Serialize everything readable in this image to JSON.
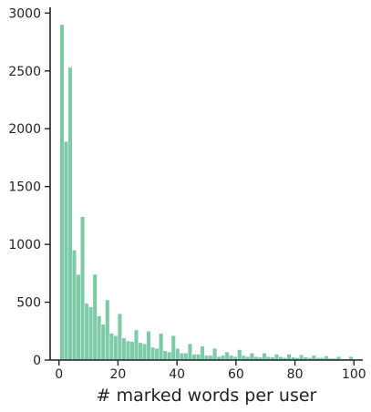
{
  "chart_data": {
    "type": "bar",
    "title": "",
    "xlabel": "# marked words per user",
    "ylabel": "",
    "xlim": [
      -3,
      103
    ],
    "ylim": [
      0,
      3050
    ],
    "xticks": [
      0,
      20,
      40,
      60,
      80,
      100
    ],
    "yticks": [
      0,
      500,
      1000,
      1500,
      2000,
      2500,
      3000
    ],
    "grid": false,
    "legend": "none",
    "bar_color": "#7dcaa8",
    "bin_width": 1.4,
    "series": [
      {
        "x": [
          1.0,
          2.4,
          3.8,
          5.2,
          6.6,
          8.0,
          9.4,
          10.8,
          12.2,
          13.6,
          15.0,
          16.4,
          17.8,
          19.2,
          20.6,
          22.0,
          23.4,
          24.8,
          26.2,
          27.6,
          29.0,
          30.4,
          31.8,
          33.2,
          34.6,
          36.0,
          37.4,
          38.8,
          40.2,
          41.6,
          43.0,
          44.4,
          45.8,
          47.2,
          48.6,
          50.0,
          51.4,
          52.8,
          54.2,
          55.6,
          57.0,
          58.4,
          59.8,
          61.2,
          62.6,
          64.0,
          65.4,
          66.8,
          68.2,
          69.6,
          71.0,
          72.4,
          73.8,
          75.2,
          76.6,
          78.0,
          79.4,
          80.8,
          82.2,
          83.6,
          85.0,
          86.4,
          87.8,
          89.2,
          90.6,
          92.0,
          93.4,
          94.8,
          96.2,
          97.6,
          99.0
        ],
        "values": [
          2900,
          1890,
          2530,
          950,
          740,
          1240,
          490,
          460,
          740,
          380,
          310,
          520,
          230,
          210,
          400,
          190,
          165,
          160,
          260,
          150,
          140,
          250,
          110,
          100,
          230,
          80,
          70,
          210,
          100,
          60,
          60,
          140,
          50,
          50,
          120,
          40,
          40,
          100,
          30,
          40,
          70,
          40,
          30,
          90,
          40,
          30,
          60,
          30,
          25,
          60,
          30,
          25,
          50,
          30,
          20,
          50,
          25,
          20,
          45,
          25,
          20,
          40,
          20,
          20,
          35,
          15,
          15,
          30,
          10,
          10,
          30
        ]
      }
    ]
  }
}
